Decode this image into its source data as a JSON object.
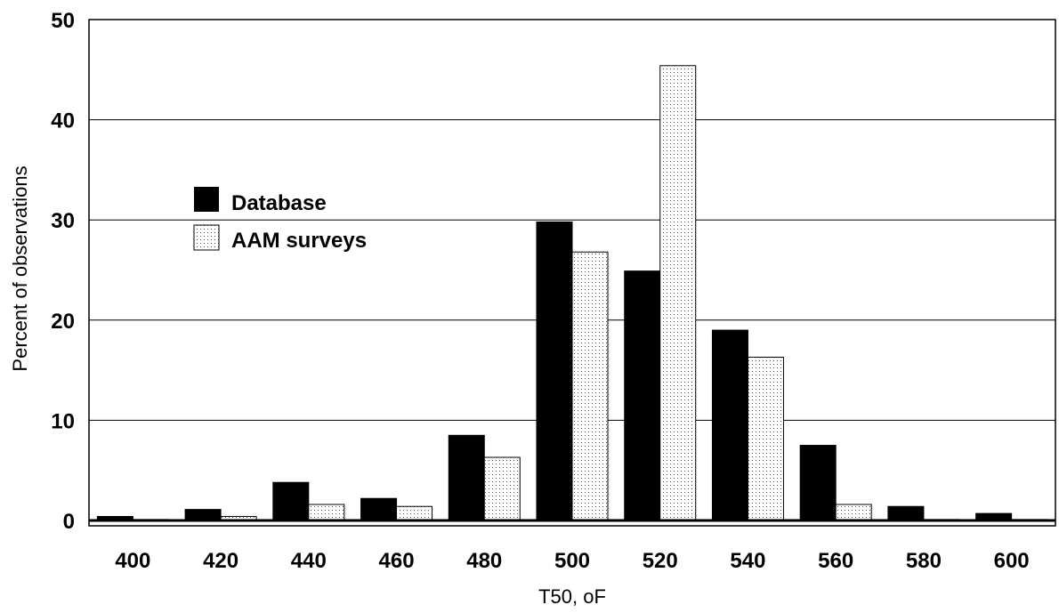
{
  "chart_data": {
    "type": "bar",
    "xlabel": "T50, oF",
    "ylabel": "Percent of observations",
    "ylim": [
      0,
      50
    ],
    "yticks": [
      "0",
      "10",
      "20",
      "30",
      "40",
      "50"
    ],
    "categories": [
      "400",
      "420",
      "440",
      "460",
      "480",
      "500",
      "520",
      "540",
      "560",
      "580",
      "600"
    ],
    "series": [
      {
        "name": "Database",
        "color": "#000000",
        "pattern": "solid",
        "values": [
          0.4,
          1.1,
          3.8,
          2.2,
          8.5,
          29.8,
          24.9,
          19.0,
          7.5,
          1.4,
          0.7
        ]
      },
      {
        "name": "AAM surveys",
        "color": "#ffffff",
        "pattern": "dotted",
        "values": [
          0.1,
          0.4,
          1.6,
          1.4,
          6.3,
          26.8,
          45.4,
          16.3,
          1.6,
          0.1,
          0.1
        ]
      }
    ],
    "grid": "horizontal",
    "legend_position": "upper-left"
  }
}
